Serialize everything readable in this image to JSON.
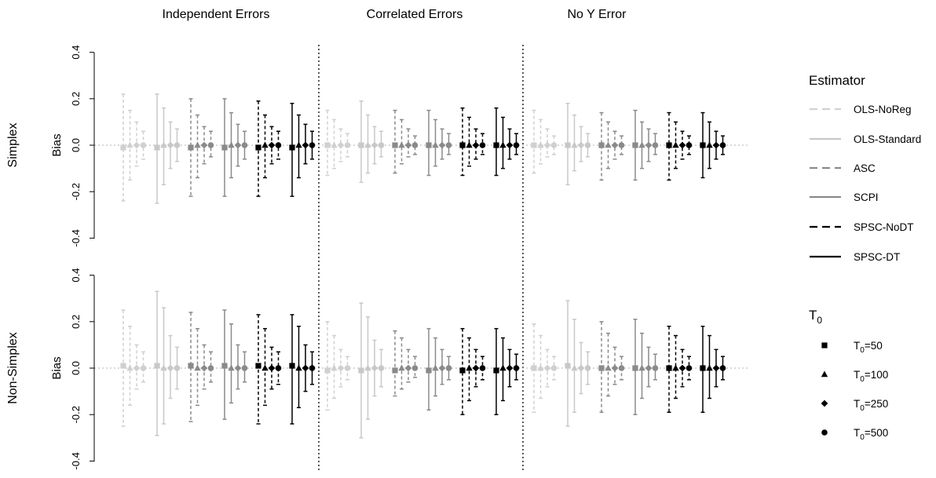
{
  "chart_data": {
    "type": "errorbar",
    "columns": [
      "Independent Errors",
      "Correlated Errors",
      "No Y Error"
    ],
    "rows": [
      "Simplex",
      "Non-Simplex"
    ],
    "ylabel": "Bias",
    "ylim": [
      -0.4,
      0.4
    ],
    "yticks": [
      "-0.4",
      "-0.2",
      "0.0",
      "0.2",
      "0.4"
    ],
    "reference_line": 0.0,
    "estimator_legend_title": "Estimator",
    "t0_legend_title_main": "T",
    "t0_legend_title_sub": "0",
    "estimators": [
      {
        "name": "OLS-NoReg",
        "color": "#d0d0d0",
        "dash": "dashed"
      },
      {
        "name": "OLS-Standard",
        "color": "#c8c8c8",
        "dash": "solid"
      },
      {
        "name": "ASC",
        "color": "#8a8a8a",
        "dash": "dashed"
      },
      {
        "name": "SCPI",
        "color": "#8a8a8a",
        "dash": "solid"
      },
      {
        "name": "SPSC-NoDT",
        "color": "#000000",
        "dash": "dashed"
      },
      {
        "name": "SPSC-DT",
        "color": "#000000",
        "dash": "solid"
      }
    ],
    "t0_levels": [
      {
        "pre": "T",
        "sub": "0",
        "post": "=50",
        "shape": "square"
      },
      {
        "pre": "T",
        "sub": "0",
        "post": "=100",
        "shape": "triangle"
      },
      {
        "pre": "T",
        "sub": "0",
        "post": "=250",
        "shape": "diamond"
      },
      {
        "pre": "T",
        "sub": "0",
        "post": "=500",
        "shape": "circle"
      }
    ],
    "panels": [
      {
        "row": 0,
        "col": 0,
        "estimators": [
          [
            [
              -0.01,
              -0.24,
              0.22
            ],
            [
              0,
              -0.15,
              0.15
            ],
            [
              0,
              -0.09,
              0.1
            ],
            [
              0,
              -0.06,
              0.06
            ]
          ],
          [
            [
              -0.01,
              -0.25,
              0.22
            ],
            [
              0,
              -0.17,
              0.16
            ],
            [
              0,
              -0.1,
              0.1
            ],
            [
              0,
              -0.07,
              0.07
            ]
          ],
          [
            [
              -0.01,
              -0.22,
              0.2
            ],
            [
              0,
              -0.14,
              0.13
            ],
            [
              0,
              -0.08,
              0.08
            ],
            [
              0,
              -0.05,
              0.06
            ]
          ],
          [
            [
              -0.01,
              -0.22,
              0.2
            ],
            [
              0,
              -0.14,
              0.14
            ],
            [
              0,
              -0.09,
              0.09
            ],
            [
              0,
              -0.06,
              0.06
            ]
          ],
          [
            [
              -0.01,
              -0.22,
              0.19
            ],
            [
              0,
              -0.14,
              0.13
            ],
            [
              0,
              -0.08,
              0.08
            ],
            [
              0,
              -0.06,
              0.06
            ]
          ],
          [
            [
              -0.01,
              -0.22,
              0.18
            ],
            [
              0,
              -0.14,
              0.13
            ],
            [
              0,
              -0.08,
              0.09
            ],
            [
              0,
              -0.06,
              0.06
            ]
          ]
        ]
      },
      {
        "row": 0,
        "col": 1,
        "estimators": [
          [
            [
              0,
              -0.13,
              0.15
            ],
            [
              0,
              -0.1,
              0.11
            ],
            [
              0,
              -0.07,
              0.07
            ],
            [
              0,
              -0.05,
              0.05
            ]
          ],
          [
            [
              0,
              -0.16,
              0.19
            ],
            [
              0,
              -0.12,
              0.13
            ],
            [
              0,
              -0.08,
              0.08
            ],
            [
              0,
              -0.05,
              0.06
            ]
          ],
          [
            [
              0,
              -0.12,
              0.15
            ],
            [
              0,
              -0.08,
              0.11
            ],
            [
              0,
              -0.05,
              0.07
            ],
            [
              0,
              -0.04,
              0.04
            ]
          ],
          [
            [
              0,
              -0.13,
              0.15
            ],
            [
              0,
              -0.09,
              0.11
            ],
            [
              0,
              -0.06,
              0.07
            ],
            [
              0,
              -0.04,
              0.05
            ]
          ],
          [
            [
              0,
              -0.13,
              0.16
            ],
            [
              0,
              -0.09,
              0.12
            ],
            [
              0,
              -0.06,
              0.07
            ],
            [
              0,
              -0.04,
              0.05
            ]
          ],
          [
            [
              0,
              -0.13,
              0.16
            ],
            [
              0,
              -0.1,
              0.12
            ],
            [
              0,
              -0.06,
              0.07
            ],
            [
              0,
              -0.04,
              0.05
            ]
          ]
        ]
      },
      {
        "row": 0,
        "col": 2,
        "estimators": [
          [
            [
              0,
              -0.12,
              0.15
            ],
            [
              0,
              -0.08,
              0.11
            ],
            [
              0,
              -0.05,
              0.07
            ],
            [
              0,
              -0.04,
              0.04
            ]
          ],
          [
            [
              0,
              -0.17,
              0.18
            ],
            [
              0,
              -0.11,
              0.13
            ],
            [
              0,
              -0.07,
              0.08
            ],
            [
              0,
              -0.05,
              0.05
            ]
          ],
          [
            [
              0,
              -0.15,
              0.14
            ],
            [
              0,
              -0.1,
              0.1
            ],
            [
              0,
              -0.06,
              0.06
            ],
            [
              0,
              -0.04,
              0.04
            ]
          ],
          [
            [
              0,
              -0.15,
              0.15
            ],
            [
              0,
              -0.1,
              0.1
            ],
            [
              0,
              -0.07,
              0.07
            ],
            [
              0,
              -0.04,
              0.05
            ]
          ],
          [
            [
              0,
              -0.15,
              0.14
            ],
            [
              0,
              -0.1,
              0.1
            ],
            [
              0,
              -0.06,
              0.06
            ],
            [
              0,
              -0.04,
              0.04
            ]
          ],
          [
            [
              0,
              -0.14,
              0.14
            ],
            [
              0,
              -0.1,
              0.1
            ],
            [
              0,
              -0.06,
              0.06
            ],
            [
              0,
              -0.04,
              0.04
            ]
          ]
        ]
      },
      {
        "row": 1,
        "col": 0,
        "estimators": [
          [
            [
              0.01,
              -0.25,
              0.25
            ],
            [
              0,
              -0.16,
              0.18
            ],
            [
              0,
              -0.09,
              0.1
            ],
            [
              0,
              -0.06,
              0.07
            ]
          ],
          [
            [
              0.01,
              -0.29,
              0.33
            ],
            [
              0,
              -0.24,
              0.26
            ],
            [
              0,
              -0.13,
              0.14
            ],
            [
              0,
              -0.09,
              0.09
            ]
          ],
          [
            [
              0.01,
              -0.23,
              0.24
            ],
            [
              0,
              -0.16,
              0.17
            ],
            [
              0,
              -0.09,
              0.1
            ],
            [
              0,
              -0.06,
              0.07
            ]
          ],
          [
            [
              0.01,
              -0.22,
              0.25
            ],
            [
              0,
              -0.15,
              0.19
            ],
            [
              0,
              -0.09,
              0.1
            ],
            [
              0,
              -0.06,
              0.07
            ]
          ],
          [
            [
              0.01,
              -0.24,
              0.23
            ],
            [
              0,
              -0.16,
              0.17
            ],
            [
              0,
              -0.09,
              0.09
            ],
            [
              0,
              -0.07,
              0.07
            ]
          ],
          [
            [
              0.01,
              -0.24,
              0.23
            ],
            [
              0,
              -0.17,
              0.18
            ],
            [
              0,
              -0.1,
              0.1
            ],
            [
              0,
              -0.07,
              0.07
            ]
          ]
        ]
      },
      {
        "row": 1,
        "col": 1,
        "estimators": [
          [
            [
              -0.01,
              -0.18,
              0.2
            ],
            [
              0,
              -0.13,
              0.14
            ],
            [
              0,
              -0.08,
              0.08
            ],
            [
              0,
              -0.05,
              0.05
            ]
          ],
          [
            [
              -0.01,
              -0.3,
              0.28
            ],
            [
              0,
              -0.22,
              0.22
            ],
            [
              0,
              -0.12,
              0.12
            ],
            [
              0,
              -0.08,
              0.08
            ]
          ],
          [
            [
              -0.01,
              -0.12,
              0.16
            ],
            [
              0,
              -0.09,
              0.13
            ],
            [
              0,
              -0.06,
              0.08
            ],
            [
              0,
              -0.04,
              0.05
            ]
          ],
          [
            [
              -0.01,
              -0.18,
              0.17
            ],
            [
              0,
              -0.12,
              0.13
            ],
            [
              0,
              -0.07,
              0.08
            ],
            [
              0,
              -0.05,
              0.05
            ]
          ],
          [
            [
              -0.01,
              -0.2,
              0.17
            ],
            [
              0,
              -0.14,
              0.13
            ],
            [
              0,
              -0.08,
              0.08
            ],
            [
              0,
              -0.05,
              0.05
            ]
          ],
          [
            [
              -0.01,
              -0.2,
              0.17
            ],
            [
              0,
              -0.14,
              0.13
            ],
            [
              0,
              -0.08,
              0.08
            ],
            [
              0,
              -0.05,
              0.06
            ]
          ]
        ]
      },
      {
        "row": 1,
        "col": 2,
        "estimators": [
          [
            [
              0,
              -0.19,
              0.19
            ],
            [
              0,
              -0.13,
              0.14
            ],
            [
              0,
              -0.08,
              0.08
            ],
            [
              0,
              -0.05,
              0.05
            ]
          ],
          [
            [
              0.01,
              -0.25,
              0.29
            ],
            [
              0,
              -0.19,
              0.21
            ],
            [
              0,
              -0.11,
              0.11
            ],
            [
              0,
              -0.07,
              0.07
            ]
          ],
          [
            [
              0,
              -0.19,
              0.2
            ],
            [
              0,
              -0.12,
              0.15
            ],
            [
              0,
              -0.07,
              0.09
            ],
            [
              0,
              -0.05,
              0.05
            ]
          ],
          [
            [
              0,
              -0.2,
              0.21
            ],
            [
              0,
              -0.13,
              0.15
            ],
            [
              0,
              -0.08,
              0.09
            ],
            [
              0,
              -0.05,
              0.06
            ]
          ],
          [
            [
              0,
              -0.19,
              0.18
            ],
            [
              0,
              -0.13,
              0.14
            ],
            [
              0,
              -0.08,
              0.08
            ],
            [
              0,
              -0.05,
              0.05
            ]
          ],
          [
            [
              0,
              -0.19,
              0.18
            ],
            [
              0,
              -0.13,
              0.14
            ],
            [
              0,
              -0.08,
              0.08
            ],
            [
              0,
              -0.05,
              0.05
            ]
          ]
        ]
      }
    ]
  }
}
